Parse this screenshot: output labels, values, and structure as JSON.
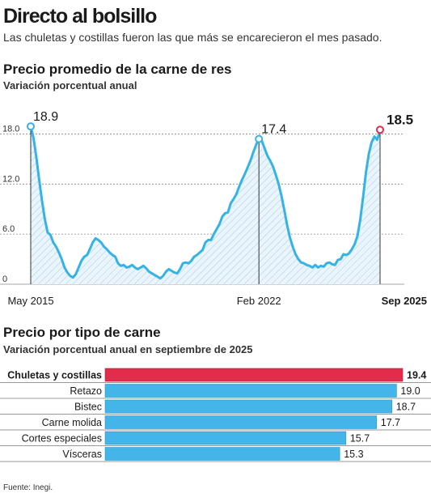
{
  "header": {
    "title": "Directo al bolsillo",
    "subtitle": "Las chuletas y costillas fueron las que más se encarecieron el mes pasado."
  },
  "chart_data": [
    {
      "type": "area",
      "title": "Precio promedio de la carne de res",
      "subtitle": "Variación porcentual anual",
      "xlabel": "",
      "ylabel": "",
      "ylim": [
        0,
        19.5
      ],
      "yticks": [
        "0",
        "6.0",
        "12.0",
        "18.0"
      ],
      "ytick_values": [
        0,
        6,
        12,
        18
      ],
      "xtick_labels": [
        "May 2015",
        "Feb 2022",
        "Sep 2025"
      ],
      "xtick_index": [
        0,
        81,
        124
      ],
      "grid": "horizontal",
      "accent_color": "#e32b4c",
      "line_color": "#36b3e6",
      "annotations": [
        {
          "label": "18.9",
          "index": 0,
          "value": 18.9
        },
        {
          "label": "17.4",
          "index": 81,
          "value": 17.4
        },
        {
          "label": "18.5",
          "index": 124,
          "value": 18.5
        }
      ],
      "series": [
        {
          "values": [
            18.9,
            17.5,
            15.2,
            12.5,
            10.0,
            7.8,
            6.2,
            5.9,
            5.0,
            4.5,
            3.8,
            3.0,
            2.0,
            1.4,
            1.0,
            0.8,
            1.2,
            2.0,
            2.8,
            3.3,
            3.5,
            4.2,
            5.0,
            5.5,
            5.3,
            5.0,
            4.5,
            4.2,
            3.8,
            3.5,
            3.3,
            2.5,
            2.2,
            2.3,
            2.0,
            2.1,
            2.3,
            2.0,
            1.8,
            2.0,
            2.2,
            1.9,
            1.5,
            1.3,
            1.1,
            0.9,
            0.7,
            1.0,
            1.5,
            1.8,
            1.6,
            1.4,
            1.3,
            1.8,
            2.5,
            2.6,
            2.5,
            2.8,
            3.3,
            3.5,
            3.8,
            4.1,
            5.0,
            5.3,
            5.3,
            6.0,
            6.6,
            7.2,
            8.1,
            8.5,
            8.6,
            9.7,
            10.2,
            10.8,
            11.7,
            12.5,
            13.2,
            14.0,
            14.8,
            15.8,
            16.7,
            17.4,
            17.2,
            16.3,
            15.4,
            14.8,
            14.1,
            13.1,
            12.0,
            10.6,
            8.9,
            7.1,
            5.6,
            4.5,
            3.6,
            3.0,
            2.6,
            2.5,
            2.3,
            2.2,
            2.0,
            2.3,
            2.0,
            2.2,
            2.1,
            2.5,
            2.6,
            2.4,
            2.3,
            2.9,
            3.0,
            3.6,
            3.5,
            3.7,
            4.2,
            4.8,
            5.8,
            7.8,
            10.5,
            13.4,
            15.6,
            17.0,
            17.7,
            17.3,
            18.5
          ]
        }
      ]
    },
    {
      "type": "bar",
      "orientation": "horizontal",
      "title": "Precio por tipo de carne",
      "subtitle": "Variación porcentual anual en septiembre de 2025",
      "xlabel": "",
      "ylabel": "",
      "xlim": [
        0,
        19.4
      ],
      "categories": [
        "Chuletas y costillas",
        "Retazo",
        "Bistec",
        "Carne molida",
        "Cortes especiales",
        "Vísceras"
      ],
      "values": [
        19.4,
        19.0,
        18.7,
        17.7,
        15.7,
        15.3
      ],
      "value_labels": [
        "19.4",
        "19.0",
        "18.7",
        "17.7",
        "15.7",
        "15.3"
      ],
      "highlight_index": 0,
      "highlight_color": "#e32b4c",
      "bar_color": "#43b5e8"
    }
  ],
  "footer": {
    "source": "Fuente: Inegi."
  }
}
